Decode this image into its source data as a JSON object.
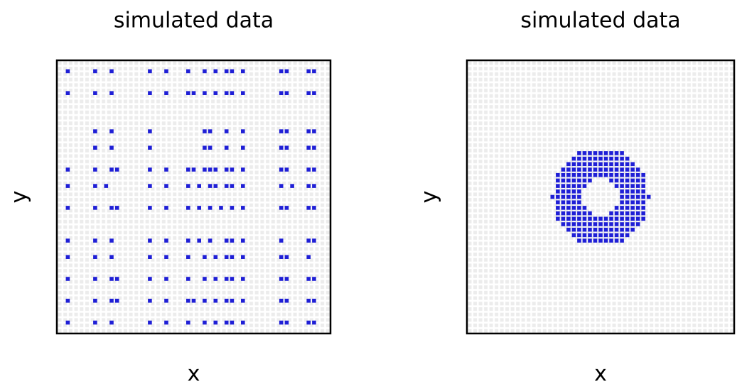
{
  "chart_data": [
    {
      "type": "scatter",
      "title": "simulated data",
      "x_label": "x",
      "y_label": "y",
      "xlim": [
        0,
        50
      ],
      "ylim": [
        0,
        50
      ],
      "color": "#1f1fd6",
      "rows": [
        {
          "y": 48,
          "x": [
            2,
            7,
            10,
            17,
            20,
            24,
            27,
            29,
            31,
            32,
            34,
            41,
            42,
            46,
            47
          ]
        },
        {
          "y": 44,
          "x": [
            2,
            7,
            10,
            17,
            20,
            24,
            25,
            27,
            29,
            31,
            32,
            34,
            41,
            42,
            46,
            47
          ]
        },
        {
          "y": 37,
          "x": [
            7,
            10,
            17,
            27,
            28,
            31,
            34,
            41,
            42,
            46,
            47
          ]
        },
        {
          "y": 34,
          "x": [
            7,
            10,
            17,
            27,
            28,
            31,
            34,
            41,
            42,
            46,
            47
          ]
        },
        {
          "y": 30,
          "x": [
            2,
            7,
            10,
            11,
            17,
            20,
            24,
            25,
            27,
            28,
            29,
            31,
            32,
            34,
            41,
            42,
            46,
            47
          ]
        },
        {
          "y": 27,
          "x": [
            2,
            7,
            9,
            17,
            20,
            24,
            26,
            28,
            29,
            31,
            32,
            34,
            41,
            43,
            46,
            47
          ]
        },
        {
          "y": 23,
          "x": [
            2,
            7,
            10,
            11,
            17,
            20,
            24,
            26,
            28,
            30,
            32,
            34,
            41,
            42,
            46,
            47
          ]
        },
        {
          "y": 17,
          "x": [
            2,
            7,
            10,
            17,
            20,
            24,
            26,
            28,
            31,
            32,
            34,
            41,
            46,
            47
          ]
        },
        {
          "y": 14,
          "x": [
            2,
            7,
            10,
            17,
            20,
            24,
            27,
            29,
            31,
            32,
            34,
            41,
            42,
            46
          ]
        },
        {
          "y": 10,
          "x": [
            2,
            7,
            10,
            11,
            17,
            20,
            24,
            27,
            29,
            31,
            32,
            34,
            41,
            42,
            46,
            47
          ]
        },
        {
          "y": 6,
          "x": [
            2,
            7,
            10,
            11,
            17,
            20,
            24,
            25,
            27,
            29,
            31,
            32,
            34,
            41,
            42,
            46,
            47
          ]
        },
        {
          "y": 2,
          "x": [
            2,
            7,
            10,
            17,
            20,
            24,
            27,
            29,
            31,
            32,
            34,
            41,
            42,
            46,
            47
          ]
        }
      ]
    },
    {
      "type": "scatter",
      "title": "simulated data",
      "x_label": "x",
      "y_label": "y",
      "xlim": [
        0,
        50
      ],
      "ylim": [
        0,
        50
      ],
      "color": "#1f1fd6",
      "rows": [
        {
          "y": 33,
          "x": [
            21,
            22,
            23,
            24,
            25,
            26,
            27,
            28,
            29
          ]
        },
        {
          "y": 32,
          "x": [
            20,
            21,
            22,
            23,
            24,
            25,
            26,
            27,
            28,
            29,
            30
          ]
        },
        {
          "y": 31,
          "x": [
            19,
            20,
            21,
            22,
            23,
            24,
            25,
            26,
            27,
            28,
            29,
            30,
            31
          ]
        },
        {
          "y": 30,
          "x": [
            18,
            19,
            20,
            21,
            22,
            23,
            24,
            25,
            26,
            27,
            28,
            29,
            30,
            31,
            32
          ]
        },
        {
          "y": 29,
          "x": [
            17,
            18,
            19,
            20,
            21,
            22,
            23,
            24,
            25,
            26,
            27,
            28,
            29,
            30,
            31,
            32,
            33
          ]
        },
        {
          "y": 28,
          "x": [
            17,
            18,
            19,
            20,
            21,
            22,
            23,
            27,
            28,
            29,
            30,
            31,
            32,
            33
          ]
        },
        {
          "y": 27,
          "x": [
            17,
            18,
            19,
            20,
            21,
            22,
            28,
            29,
            30,
            31,
            32,
            33
          ]
        },
        {
          "y": 26,
          "x": [
            17,
            18,
            19,
            20,
            21,
            29,
            30,
            31,
            32,
            33
          ]
        },
        {
          "y": 25,
          "x": [
            16,
            17,
            18,
            19,
            20,
            21,
            29,
            30,
            31,
            32,
            33,
            34
          ]
        },
        {
          "y": 24,
          "x": [
            17,
            18,
            19,
            20,
            21,
            29,
            30,
            31,
            32,
            33
          ]
        },
        {
          "y": 23,
          "x": [
            17,
            18,
            19,
            20,
            21,
            22,
            28,
            29,
            30,
            31,
            32,
            33
          ]
        },
        {
          "y": 22,
          "x": [
            17,
            18,
            19,
            20,
            21,
            22,
            23,
            27,
            28,
            29,
            30,
            31,
            32,
            33
          ]
        },
        {
          "y": 21,
          "x": [
            17,
            18,
            19,
            20,
            21,
            22,
            23,
            24,
            25,
            26,
            27,
            28,
            29,
            30,
            31,
            32,
            33
          ]
        },
        {
          "y": 20,
          "x": [
            18,
            19,
            20,
            21,
            22,
            23,
            24,
            25,
            26,
            27,
            28,
            29,
            30,
            31,
            32
          ]
        },
        {
          "y": 19,
          "x": [
            19,
            20,
            21,
            22,
            23,
            24,
            25,
            26,
            27,
            28,
            29,
            30,
            31
          ]
        },
        {
          "y": 18,
          "x": [
            20,
            21,
            22,
            23,
            24,
            25,
            26,
            27,
            28,
            29,
            30
          ]
        },
        {
          "y": 17,
          "x": [
            21,
            22,
            23,
            24,
            25,
            26,
            27,
            28,
            29
          ]
        }
      ]
    }
  ]
}
